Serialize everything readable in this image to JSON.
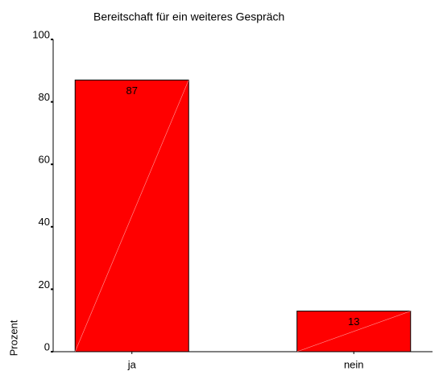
{
  "chart_data": {
    "type": "bar",
    "title": "Bereitschaft für ein weiteres Gespräch",
    "y_label": "Prozent",
    "categories": [
      "ja",
      "nein"
    ],
    "values": [
      87,
      13
    ],
    "color": "#ff0000",
    "ylim": [
      0,
      100
    ],
    "yticks": [
      0,
      20,
      40,
      60,
      80,
      100
    ],
    "grid": false
  }
}
